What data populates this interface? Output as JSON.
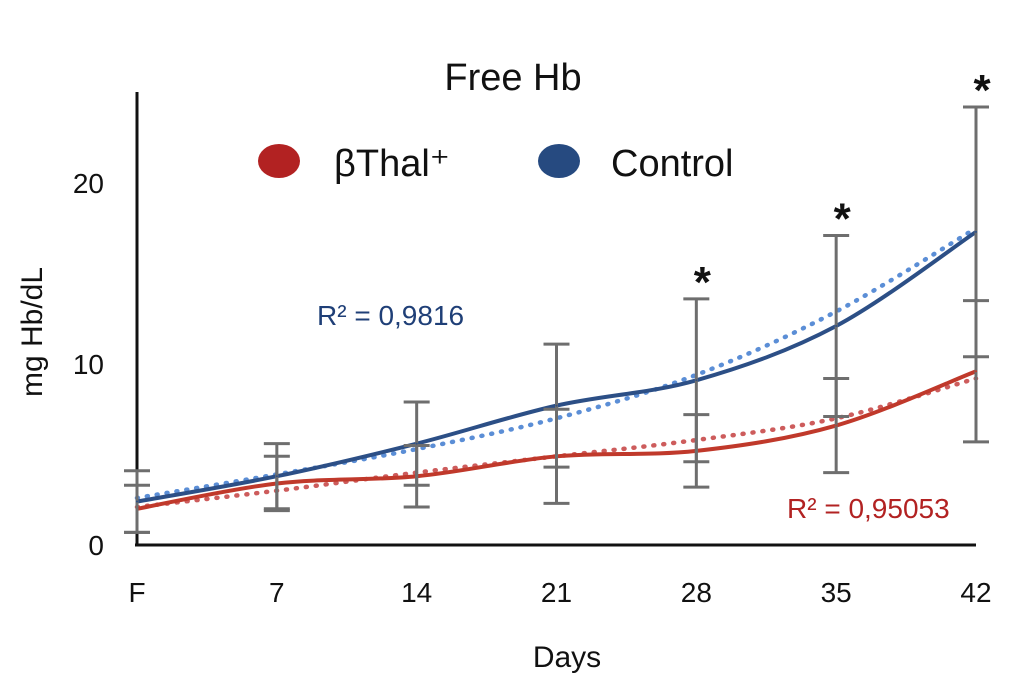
{
  "chart_data": {
    "type": "line",
    "title": "Free Hb",
    "xlabel": "Days",
    "ylabel": "mg Hb/dL",
    "categories": [
      "F",
      "7",
      "14",
      "21",
      "28",
      "35",
      "42"
    ],
    "x": [
      0,
      7,
      14,
      21,
      28,
      35,
      42
    ],
    "ylim": [
      0,
      24
    ],
    "yticks": [
      0,
      10,
      20
    ],
    "grid": false,
    "legend_position": "top",
    "series": [
      {
        "name": "βThal⁺",
        "color": "#c0392b",
        "marker_color": "#b22222",
        "values": [
          2.0,
          3.4,
          3.8,
          4.9,
          5.2,
          6.6,
          9.6
        ],
        "error": [
          1.3,
          1.5,
          1.7,
          2.6,
          2.0,
          2.6,
          3.9
        ],
        "trend_values": [
          2.1,
          3.0,
          4.0,
          4.9,
          5.8,
          7.0,
          9.2
        ],
        "trend_color": "#cd5c5c",
        "r2": "R² = 0,95053"
      },
      {
        "name": "Control",
        "color": "#2c4f86",
        "marker_color": "#264a80",
        "values": [
          2.4,
          3.8,
          5.6,
          7.7,
          9.1,
          12.1,
          17.3
        ],
        "error": [
          1.7,
          1.8,
          2.3,
          3.4,
          4.5,
          5.0,
          6.9
        ],
        "trend_values": [
          2.6,
          3.9,
          5.3,
          7.0,
          9.4,
          12.9,
          17.5
        ],
        "trend_color": "#5b8ed6",
        "r2": "R² = 0,9816"
      }
    ],
    "significance": [
      {
        "x": 28,
        "label": "*"
      },
      {
        "x": 35,
        "label": "*"
      },
      {
        "x": 42,
        "label": "*"
      }
    ]
  }
}
